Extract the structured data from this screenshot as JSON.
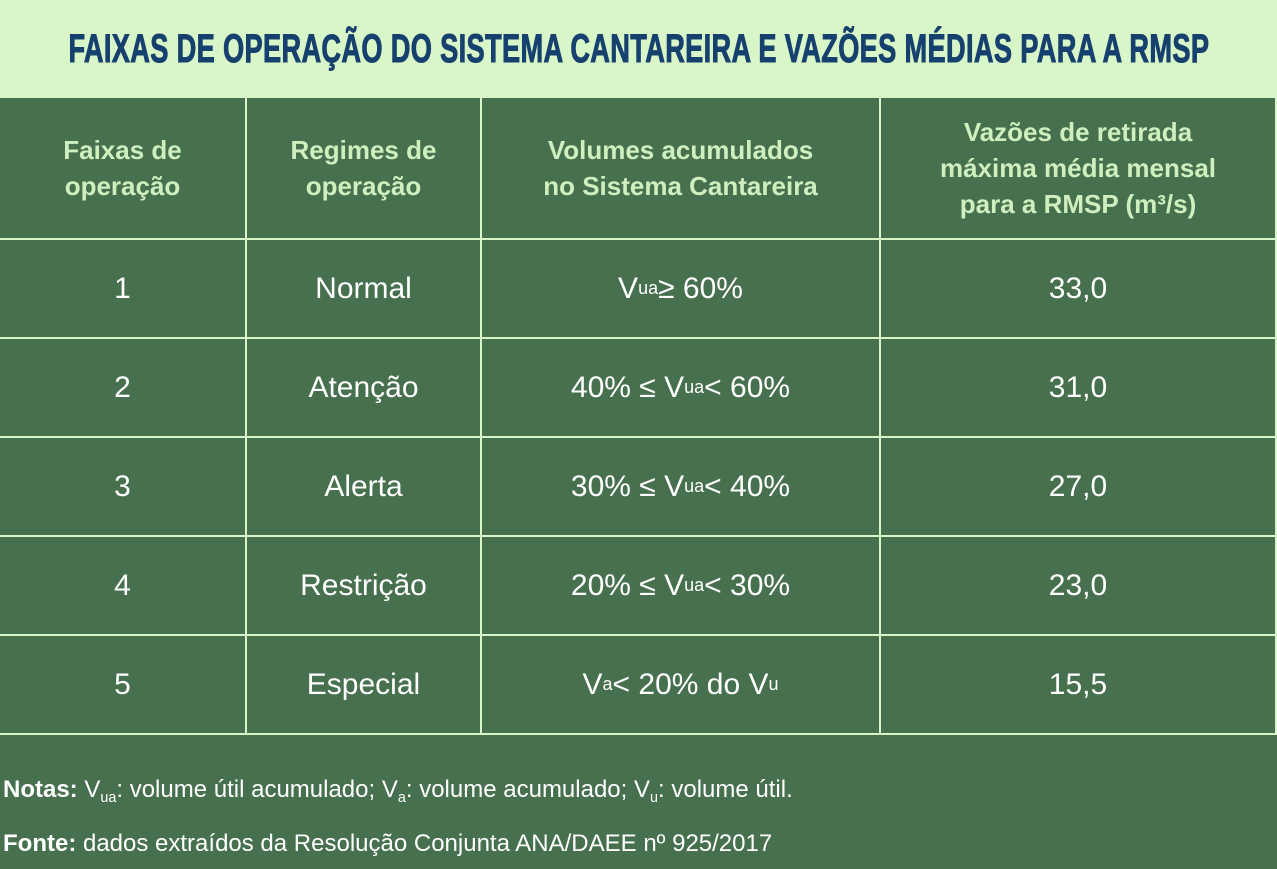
{
  "colors": {
    "band_background": "#D9F6C8",
    "table_background": "#47704E",
    "grid_line": "#D9F6C8",
    "title_text": "#16406E",
    "header_text": "#CFF0BE",
    "body_text": "#FFFFFF"
  },
  "title": "FAIXAS DE OPERAÇÃO DO SISTEMA CANTAREIRA E VAZÕES MÉDIAS PARA A RMSP",
  "chart_data": {
    "type": "table",
    "title": "FAIXAS DE OPERAÇÃO DO SISTEMA CANTAREIRA E VAZÕES MÉDIAS PARA A RMSP",
    "columns": [
      "Faixas de operação",
      "Regimes de operação",
      "Volumes acumulados no Sistema Cantareira",
      "Vazões de retirada máxima média mensal para a RMSP (m³/s)"
    ],
    "rows": [
      [
        "1",
        "Normal",
        "Vua ≥ 60%",
        "33,0"
      ],
      [
        "2",
        "Atenção",
        "40% ≤ Vua < 60%",
        "31,0"
      ],
      [
        "3",
        "Alerta",
        "30% ≤ Vua < 40%",
        "27,0"
      ],
      [
        "4",
        "Restrição",
        "20% ≤ Vua < 30%",
        "23,0"
      ],
      [
        "5",
        "Especial",
        "Va < 20% do Vu",
        "15,5"
      ]
    ],
    "notes": "Notas: Vua: volume útil acumulado; Va: volume acumulado; Vu: volume útil.",
    "source": "Fonte: dados extraídos da Resolução Conjunta ANA/DAEE nº 925/2017"
  },
  "table": {
    "headers": [
      "Faixas de\noperação",
      "Regimes de\noperação",
      "Volumes acumulados\nno Sistema Cantareira",
      "Vazões de retirada\nmáxima média mensal\npara a RMSP (m³/s)"
    ],
    "volume_rich": [
      [
        {
          "t": "V"
        },
        {
          "s": "ua"
        },
        {
          "t": " ≥ 60%"
        }
      ],
      [
        {
          "t": "40% ≤ V"
        },
        {
          "s": "ua"
        },
        {
          "t": " < 60%"
        }
      ],
      [
        {
          "t": "30% ≤ V"
        },
        {
          "s": "ua"
        },
        {
          "t": " < 40%"
        }
      ],
      [
        {
          "t": "20% ≤ V"
        },
        {
          "s": "ua"
        },
        {
          "t": " < 30%"
        }
      ],
      [
        {
          "t": "V"
        },
        {
          "s": "a"
        },
        {
          "t": " < 20% do V"
        },
        {
          "s": "u"
        }
      ]
    ]
  },
  "notes": {
    "line1": [
      {
        "b": "Notas:"
      },
      {
        "t": " V"
      },
      {
        "s": "ua"
      },
      {
        "t": ": volume útil acumulado; V"
      },
      {
        "s": "a"
      },
      {
        "t": ": volume acumulado; V"
      },
      {
        "s": "u"
      },
      {
        "t": ": volume útil."
      }
    ],
    "line2": [
      {
        "b": "Fonte:"
      },
      {
        "t": " dados extraídos da Resolução Conjunta ANA/DAEE nº 925/2017"
      }
    ]
  }
}
